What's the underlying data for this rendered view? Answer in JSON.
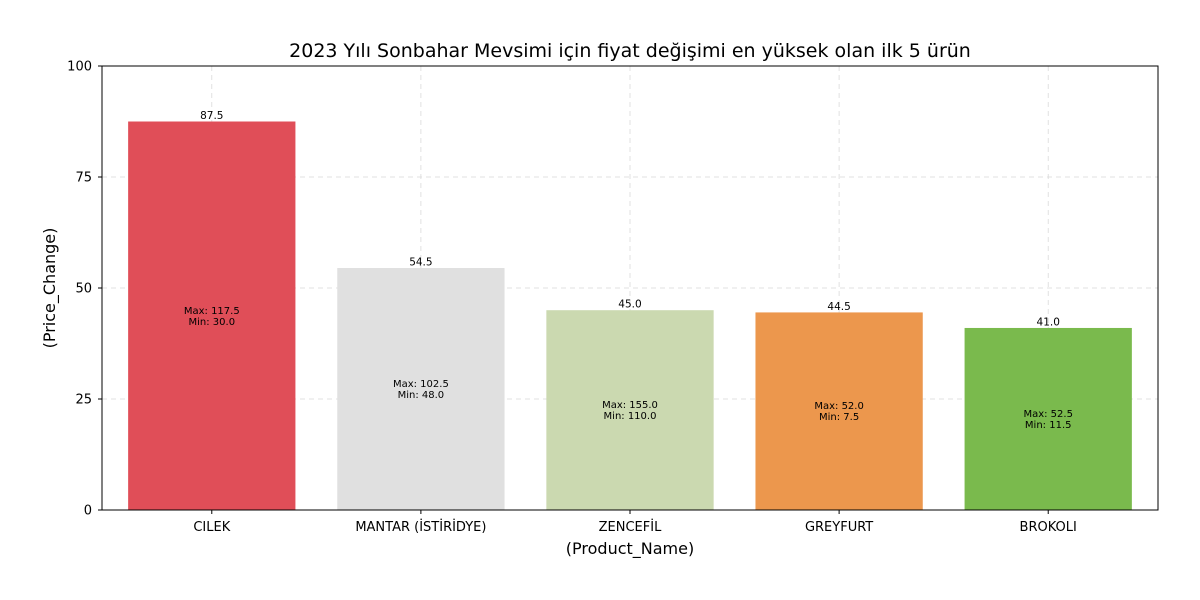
{
  "chart_data": {
    "type": "bar",
    "title": "2023 Yılı Sonbahar Mevsimi için fiyat değişimi en yüksek olan ilk 5 ürün",
    "xlabel": "(Product_Name)",
    "ylabel": "(Price_Change)",
    "ylim": [
      0,
      100
    ],
    "yticks": [
      0,
      25,
      50,
      75,
      100
    ],
    "grid": true,
    "categories": [
      "CILEK",
      "MANTAR (İSTİRİDYE)",
      "ZENCEFİL",
      "GREYFURT",
      "BROKOLI"
    ],
    "values": [
      87.5,
      54.5,
      45.0,
      44.5,
      41.0
    ],
    "value_labels": [
      "87.5",
      "54.5",
      "45.0",
      "44.5",
      "41.0"
    ],
    "max_labels": [
      "Max: 117.5",
      "Max: 102.5",
      "Max: 155.0",
      "Max: 52.0",
      "Max: 52.5"
    ],
    "min_labels": [
      "Min: 30.0",
      "Min: 48.0",
      "Min: 110.0",
      "Min: 7.5",
      "Min: 11.5"
    ],
    "colors": [
      "#e04e58",
      "#e0e0e0",
      "#cbd9b0",
      "#ec974d",
      "#7aba4d"
    ]
  }
}
